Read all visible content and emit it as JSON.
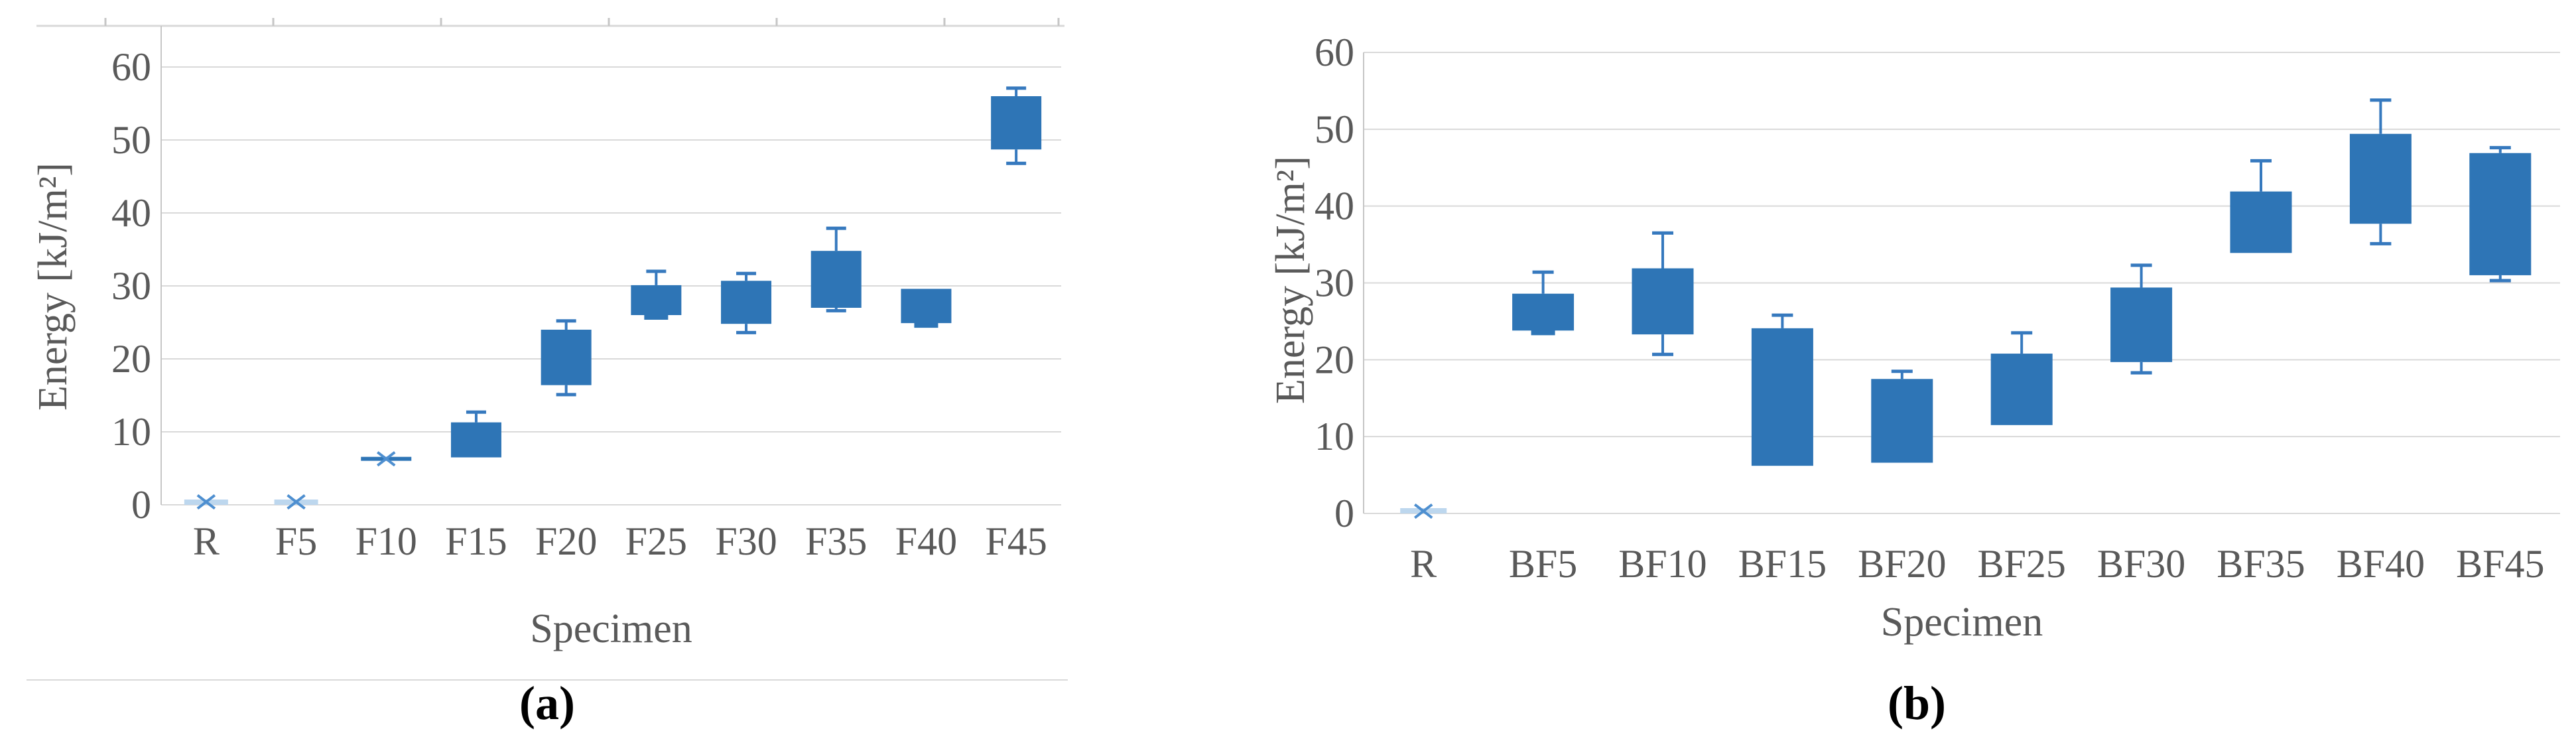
{
  "figure": {
    "background": "#ffffff",
    "text_color": "#595959",
    "caption_color": "#000000"
  },
  "colors": {
    "box_fill": "#2E75B6",
    "whisker": "#3679BE",
    "mean_marker": "#4E8FD0",
    "light_box": "#BDD7EE",
    "gridline": "#D9D9D9",
    "axis_line": "#C6C6C6"
  },
  "chart_data": [
    {
      "id": "a",
      "type": "box",
      "caption": "(a)",
      "xlabel": "Specimen",
      "ylabel": "Energy [kJ/m²]",
      "ylim": [
        0,
        60
      ],
      "yticks": [
        0,
        10,
        20,
        30,
        40,
        50,
        60
      ],
      "grid": true,
      "legend": "none",
      "categories": [
        "R",
        "F5",
        "F10",
        "F15",
        "F20",
        "F25",
        "F30",
        "F35",
        "F40",
        "F45"
      ],
      "boxes": [
        {
          "label": "R",
          "kind": "mean-only",
          "mean": 0.4,
          "q1": 0.0,
          "q3": 0.2
        },
        {
          "label": "F5",
          "kind": "mean-only",
          "mean": 0.4,
          "q1": 0.0,
          "q3": 0.2
        },
        {
          "label": "F10",
          "kind": "collapsed",
          "mean": 6.3,
          "q1": 6.2,
          "q3": 6.4
        },
        {
          "label": "F15",
          "q1": 6.5,
          "q3": 11.3,
          "whisker_high": 12.7
        },
        {
          "label": "F20",
          "q1": 16.4,
          "q3": 24.0,
          "whisker_low": 15.1,
          "whisker_high": 25.2
        },
        {
          "label": "F25",
          "q1": 26.0,
          "q3": 30.1,
          "median": 25.9,
          "whisker_high": 32.0
        },
        {
          "label": "F30",
          "q1": 24.8,
          "q3": 30.7,
          "whisker_low": 23.6,
          "whisker_high": 31.7
        },
        {
          "label": "F35",
          "q1": 27.0,
          "q3": 34.8,
          "whisker_low": 26.6,
          "whisker_high": 37.9
        },
        {
          "label": "F40",
          "q1": 24.9,
          "q3": 29.6,
          "median": 24.7,
          "whisker_low": 24.5
        },
        {
          "label": "F45",
          "q1": 48.7,
          "q3": 56.0,
          "whisker_low": 46.8,
          "whisker_high": 57.1
        }
      ]
    },
    {
      "id": "b",
      "type": "box",
      "caption": "(b)",
      "xlabel": "Specimen",
      "ylabel": "Energy [kJ/m²]",
      "ylim": [
        0,
        60
      ],
      "yticks": [
        0,
        10,
        20,
        30,
        40,
        50,
        60
      ],
      "grid": true,
      "legend": "none",
      "categories": [
        "R",
        "BF5",
        "BF10",
        "BF15",
        "BF20",
        "BF25",
        "BF30",
        "BF35",
        "BF40",
        "BF45"
      ],
      "boxes": [
        {
          "label": "R",
          "kind": "mean-only",
          "mean": 0.3,
          "q1": 0.0,
          "q3": 0.2
        },
        {
          "label": "BF5",
          "q1": 23.8,
          "q3": 28.6,
          "median": 23.9,
          "whisker_high": 31.4
        },
        {
          "label": "BF10",
          "q1": 23.3,
          "q3": 31.9,
          "whisker_low": 20.7,
          "whisker_high": 36.5
        },
        {
          "label": "BF15",
          "q1": 6.2,
          "q3": 24.1,
          "whisker_high": 25.8
        },
        {
          "label": "BF20",
          "q1": 6.6,
          "q3": 17.5,
          "whisker_high": 18.5
        },
        {
          "label": "BF25",
          "q1": 11.5,
          "q3": 20.8,
          "whisker_high": 23.5
        },
        {
          "label": "BF30",
          "q1": 19.7,
          "q3": 29.4,
          "whisker_low": 18.3,
          "whisker_high": 32.3
        },
        {
          "label": "BF35",
          "q1": 33.9,
          "q3": 41.9,
          "whisker_high": 45.9
        },
        {
          "label": "BF40",
          "q1": 37.7,
          "q3": 49.4,
          "whisker_low": 35.1,
          "whisker_high": 53.8
        },
        {
          "label": "BF45",
          "q1": 31.0,
          "q3": 46.9,
          "whisker_low": 30.3,
          "whisker_high": 47.6
        }
      ]
    }
  ]
}
